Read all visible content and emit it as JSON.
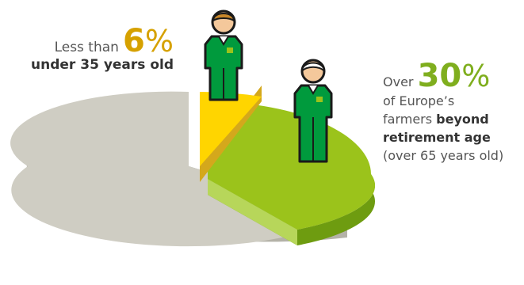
{
  "chart_data": {
    "type": "pie",
    "title": "",
    "slices": [
      {
        "label": "under 35 years old",
        "value": 6,
        "color": "#ffd500"
      },
      {
        "label": "beyond retirement age",
        "value": 30,
        "color": "#9bc31b"
      },
      {
        "label": "",
        "value": 64,
        "color": "#cfcdc3"
      }
    ],
    "value_format": "%",
    "style": "3d-exploded"
  },
  "annotations": {
    "young": {
      "prefix": "Less than",
      "number": "6",
      "unit": "%",
      "text": "under 35 years old",
      "number_color": "#d6a100"
    },
    "old": {
      "prefix": "Over",
      "number": "30",
      "unit": "%",
      "line1": "of Europe’s",
      "line2_plain": "farmers",
      "line2_bold": "beyond",
      "line3_bold": "retirement age",
      "line4": "(over 65 years old)",
      "number_color": "#7fae1e"
    }
  },
  "icons": {
    "young_farmer": "young-farmer-icon",
    "old_farmer": "old-farmer-icon"
  }
}
